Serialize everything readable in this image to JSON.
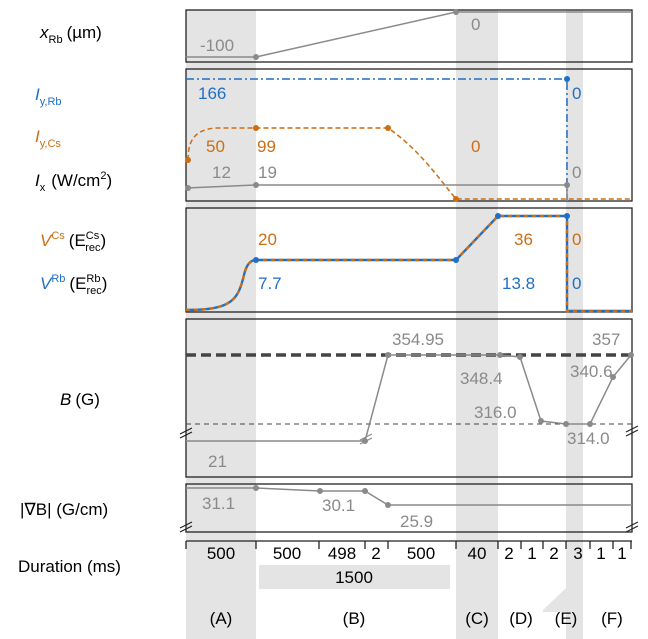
{
  "colors": {
    "rb": "#1f6fc4",
    "cs": "#cc6e14",
    "gray": "#8a8a8a",
    "dark": "#444444",
    "shade": "#e4e4e4"
  },
  "row_labels": {
    "x_rb": {
      "main": "x",
      "sub": "Rb",
      "unit": "(µm)"
    },
    "i_y_rb": {
      "main": "I",
      "sub": "y,Rb"
    },
    "i_y_cs": {
      "main": "I",
      "sub": "y,Cs"
    },
    "i_x": {
      "main": "I",
      "sub": "x",
      "unit": "(W/cm",
      "unit_sup": "2",
      "unit_end": ")"
    },
    "v_cs": {
      "main": "V",
      "sup": "Cs",
      "paren_open": "(E",
      "paren_sup": "Cs",
      "paren_sub": "rec",
      "paren_close": ")"
    },
    "v_rb": {
      "main": "V",
      "sup": "Rb",
      "paren_open": "(E",
      "paren_sup": "Rb",
      "paren_sub": "rec",
      "paren_close": ")"
    },
    "b": {
      "main": "B",
      "unit": "(G)"
    },
    "grad_b": {
      "text": "|∇B| (G/cm)"
    },
    "duration": {
      "text": "Duration (ms)"
    }
  },
  "values": {
    "x_start": "-100",
    "x_end": "0",
    "i_rb_on": "166",
    "i_rb_off": "0",
    "i_cs_a": "50",
    "i_cs_b": "99",
    "i_cs_off": "0",
    "i_x_a": "12",
    "i_x_b": "19",
    "i_x_off": "0",
    "v_cs_1": "20",
    "v_cs_2": "36",
    "v_cs_off": "0",
    "v_rb_1": "7.7",
    "v_rb_2": "13.8",
    "v_rb_off": "0",
    "b_low": "21",
    "b_high": "354.95",
    "b_348": "348.4",
    "b_316": "316.0",
    "b_340": "340.6",
    "b_314": "314.0",
    "b_357": "357",
    "g_1": "31.1",
    "g_2": "30.1",
    "g_3": "25.9"
  },
  "durations": [
    "500",
    "500",
    "498",
    "2",
    "500",
    "40",
    "2",
    "1",
    "2",
    "3",
    "1",
    "1"
  ],
  "total_b": "1500",
  "phases": [
    "(A)",
    "(B)",
    "(C)",
    "(D)",
    "(E)",
    "(F)"
  ]
}
